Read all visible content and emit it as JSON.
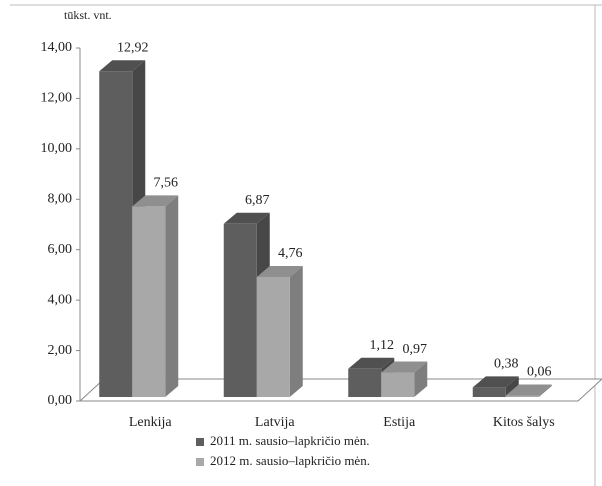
{
  "chart_data": {
    "type": "bar3d",
    "y_axis_label": "tūkst. vnt.",
    "categories": [
      "Lenkija",
      "Latvija",
      "Estija",
      "Kitos šalys"
    ],
    "series": [
      {
        "name": "2011 m. sausio–lapkričio mėn.",
        "color": "#5e5e5e",
        "values": [
          12.92,
          6.87,
          1.12,
          0.38
        ],
        "value_labels": [
          "12,92",
          "6,87",
          "1,12",
          "0,38"
        ]
      },
      {
        "name": "2012 m. sausio–lapkričio mėn.",
        "color": "#a8a8a8",
        "values": [
          7.56,
          4.76,
          0.97,
          0.06
        ],
        "value_labels": [
          "7,56",
          "4,76",
          "0,97",
          "0,06"
        ]
      }
    ],
    "ylim": [
      0,
      14
    ],
    "yticks": [
      {
        "value": 0,
        "label": "0,00"
      },
      {
        "value": 2,
        "label": "2,00"
      },
      {
        "value": 4,
        "label": "4,00"
      },
      {
        "value": 6,
        "label": "6,00"
      },
      {
        "value": 8,
        "label": "8,00"
      },
      {
        "value": 10,
        "label": "10,00"
      },
      {
        "value": 12,
        "label": "12,00"
      },
      {
        "value": 14,
        "label": "14,00"
      }
    ],
    "legend": "bottom"
  }
}
